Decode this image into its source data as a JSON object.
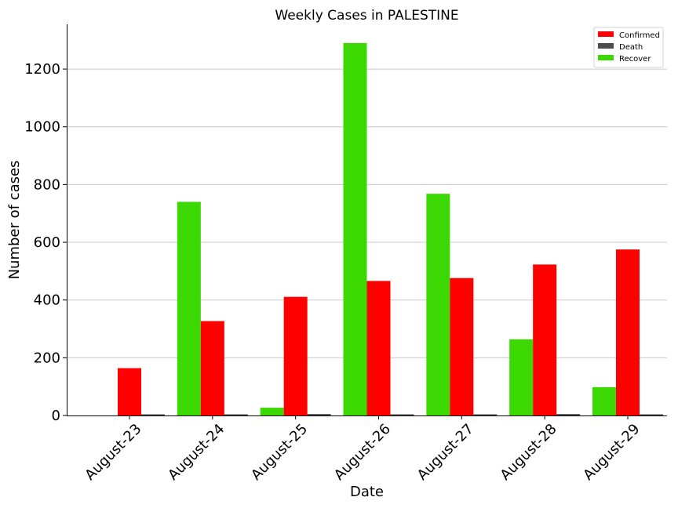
{
  "chart_data": {
    "type": "bar",
    "title": "Weekly Cases in PALESTINE",
    "xlabel": "Date",
    "ylabel": "Number of cases",
    "categories": [
      "August-23",
      "August-24",
      "August-25",
      "August-26",
      "August-27",
      "August-28",
      "August-29"
    ],
    "series": [
      {
        "name": "Recover",
        "color": "#3cd803",
        "values": [
          0,
          740,
          27,
          1290,
          768,
          264,
          98
        ]
      },
      {
        "name": "Confirmed",
        "color": "#ff0000",
        "values": [
          164,
          327,
          411,
          466,
          476,
          523,
          575
        ]
      },
      {
        "name": "Death",
        "color": "#4d4d4d",
        "values": [
          2,
          2,
          5,
          0,
          2,
          5,
          2
        ]
      }
    ],
    "legend_order": [
      "Confirmed",
      "Death",
      "Recover"
    ],
    "ylim": [
      0,
      1355
    ],
    "yticks": [
      0,
      200,
      400,
      600,
      800,
      1000,
      1200
    ],
    "grid": "y",
    "legend_position": "top-right"
  }
}
